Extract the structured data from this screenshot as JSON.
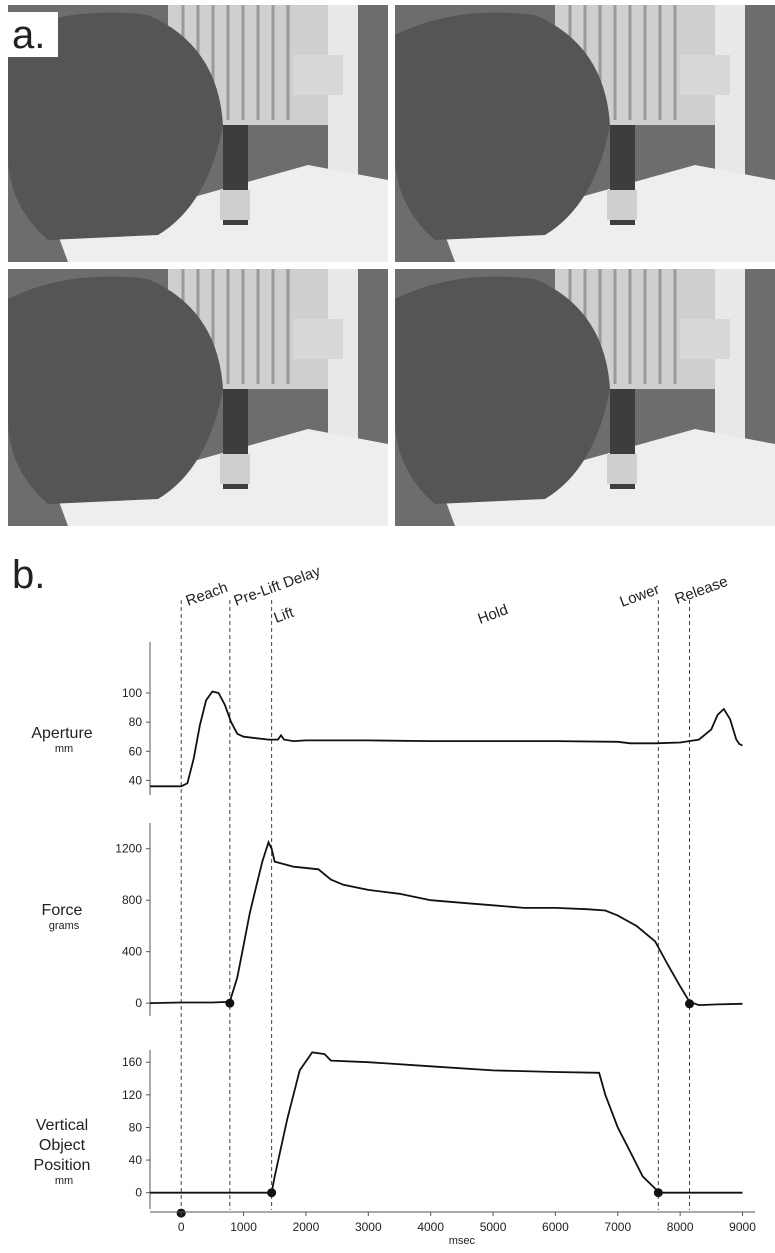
{
  "figure": {
    "panel_a_label": "a.",
    "panel_b_label": "b."
  },
  "events": {
    "x": [
      0,
      780,
      1450,
      7650,
      8150
    ],
    "phases": [
      "Reach",
      "Pre-Lift Delay",
      "Lift",
      "Hold",
      "Lower",
      "Release"
    ]
  },
  "chart_data": [
    {
      "type": "line",
      "ylabel": "Aperture",
      "yunit": "mm",
      "color": "#111111",
      "xlim": [
        -500,
        9200
      ],
      "ylim": [
        30,
        135
      ],
      "yticks": [
        40,
        60,
        80,
        100
      ],
      "x": [
        -500,
        -50,
        0,
        100,
        200,
        300,
        400,
        500,
        600,
        700,
        800,
        900,
        1000,
        1200,
        1400,
        1550,
        1600,
        1650,
        1800,
        2000,
        3000,
        4000,
        5000,
        6000,
        7000,
        7200,
        7600,
        8000,
        8300,
        8500,
        8600,
        8700,
        8800,
        8900,
        8950,
        9000
      ],
      "values": [
        36,
        36,
        36,
        38,
        55,
        78,
        95,
        101,
        100,
        92,
        80,
        72,
        70,
        69,
        68,
        68,
        71,
        68,
        67,
        67.5,
        67.5,
        67,
        67,
        67,
        66.5,
        65.5,
        65.5,
        66,
        68,
        75,
        85,
        89,
        82,
        68,
        65,
        64
      ]
    },
    {
      "type": "line",
      "ylabel": "Force",
      "yunit": "grams",
      "color": "#111111",
      "xlim": [
        -500,
        9200
      ],
      "ylim": [
        -100,
        1400
      ],
      "yticks": [
        0,
        400,
        800,
        1200
      ],
      "x": [
        -500,
        0,
        500,
        780,
        900,
        1000,
        1100,
        1200,
        1300,
        1400,
        1450,
        1500,
        1800,
        2200,
        2400,
        2600,
        3000,
        3500,
        4000,
        4500,
        5000,
        5500,
        6000,
        6500,
        6800,
        7000,
        7300,
        7600,
        7800,
        8000,
        8150,
        8300,
        8600,
        9000
      ],
      "values": [
        0,
        5,
        5,
        10,
        200,
        450,
        700,
        900,
        1100,
        1250,
        1200,
        1100,
        1060,
        1040,
        960,
        920,
        880,
        850,
        800,
        780,
        760,
        740,
        740,
        730,
        720,
        680,
        600,
        480,
        300,
        130,
        10,
        -15,
        -10,
        -5
      ],
      "markers": {
        "x": [
          780,
          8150
        ],
        "y": [
          0,
          -5
        ]
      }
    },
    {
      "type": "line",
      "ylabel": "Vertical Object Position",
      "yunit": "mm",
      "color": "#111111",
      "xlim": [
        -500,
        9200
      ],
      "ylim": [
        -20,
        175
      ],
      "yticks": [
        0,
        40,
        80,
        120,
        160
      ],
      "xticks": [
        0,
        1000,
        2000,
        3000,
        4000,
        5000,
        6000,
        7000,
        8000,
        9000
      ],
      "xlabel": "msec",
      "x": [
        -500,
        1450,
        1500,
        1700,
        1900,
        2100,
        2300,
        2400,
        3000,
        4000,
        5000,
        6000,
        6700,
        6800,
        7000,
        7200,
        7400,
        7600,
        7700,
        9000
      ],
      "values": [
        0,
        0,
        20,
        90,
        150,
        172,
        170,
        162,
        160,
        155,
        150,
        148,
        147,
        120,
        80,
        50,
        20,
        5,
        0,
        0
      ],
      "markers": {
        "x": [
          1450,
          7650,
          0
        ],
        "y": [
          0,
          0,
          -25
        ]
      }
    }
  ]
}
